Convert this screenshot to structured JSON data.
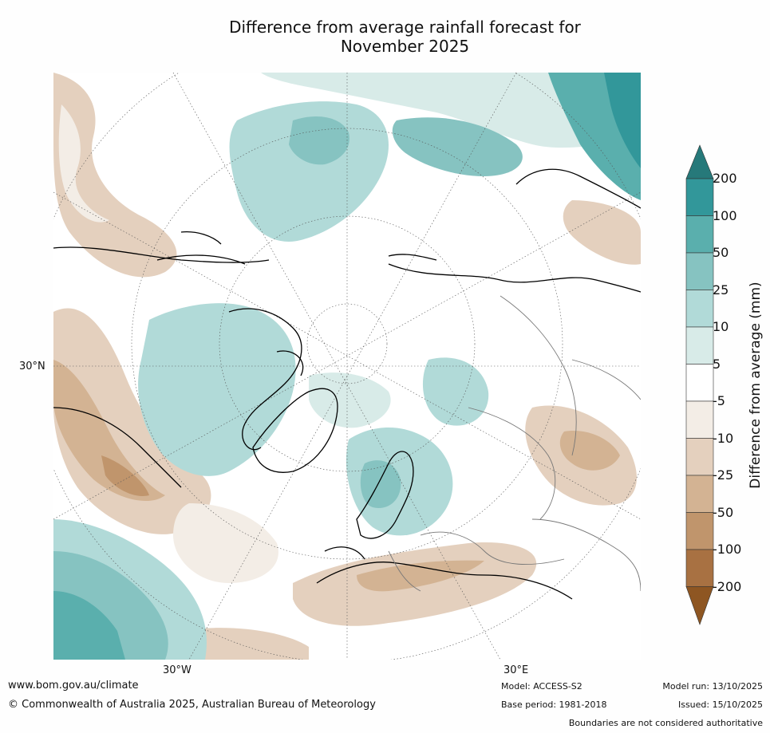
{
  "title": {
    "line1": "Difference from average rainfall forecast for",
    "line2": "November 2025"
  },
  "map": {
    "projection": "north-polar-stereographic",
    "lat_label": "30°N",
    "lon_labels": {
      "west": "30°W",
      "east": "30°E"
    }
  },
  "colorbar": {
    "label": "Difference from average (mm)",
    "ticks": [
      "200",
      "100",
      "50",
      "25",
      "10",
      "5",
      "-5",
      "-10",
      "-25",
      "-50",
      "-100",
      "-200"
    ],
    "colors": {
      "over": "#26797a",
      "c1": "#32979a",
      "c2": "#5aafad",
      "c3": "#86c3c1",
      "c4": "#b1dad8",
      "c5": "#d8ebe8",
      "neutral": "#ffffff",
      "d1": "#f3ede6",
      "d2": "#e4d0be",
      "d3": "#d3b393",
      "d4": "#c0956c",
      "d5": "#a87142",
      "under": "#8e5622"
    }
  },
  "footer": {
    "site": "www.bom.gov.au/climate",
    "copyright": "© Commonwealth of Australia 2025, Australian Bureau of Meteorology",
    "model": "Model: ACCESS-S2",
    "base_period": "Base period: 1981-2018",
    "model_run": "Model run: 13/10/2025",
    "issued": "Issued: 15/10/2025",
    "disclaimer": "Boundaries are not considered authoritative"
  }
}
